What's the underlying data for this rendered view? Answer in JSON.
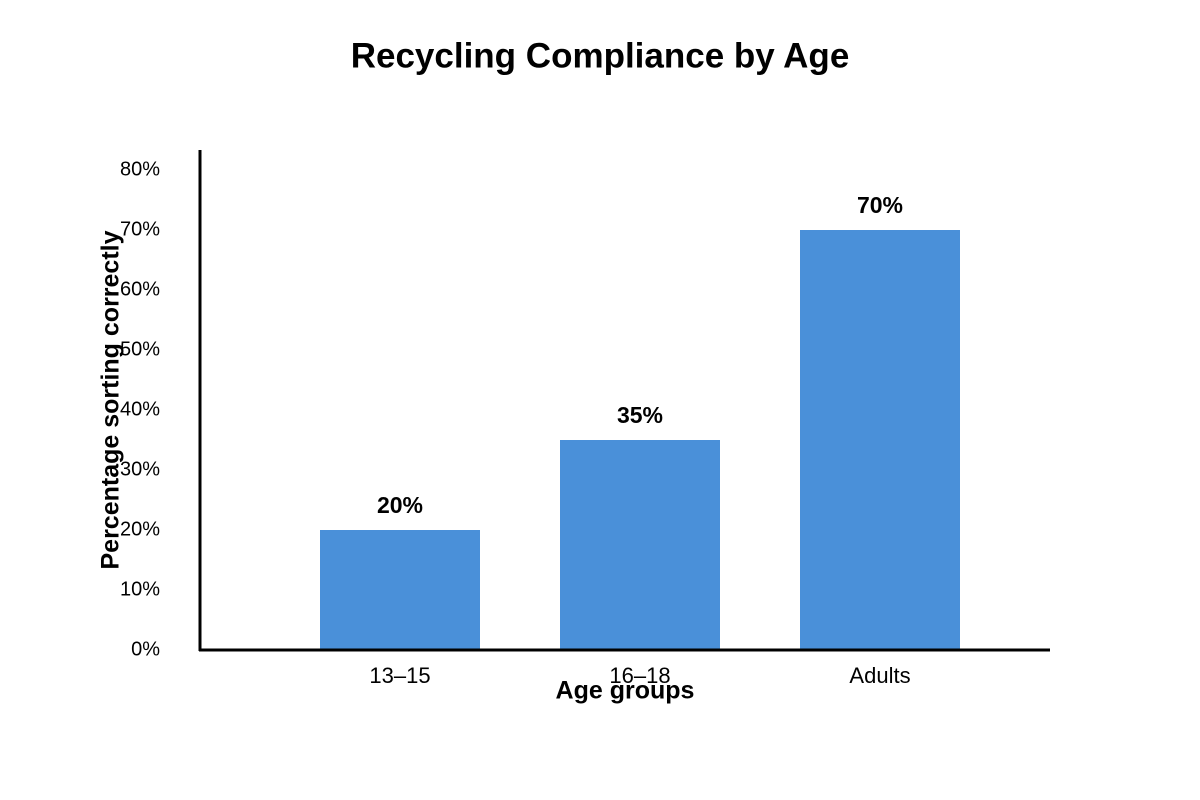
{
  "chart_data": {
    "type": "bar",
    "title": "Recycling Compliance by Age",
    "x_label": "Age groups",
    "y_label": "Percentage sorting correctly",
    "categories": [
      "13–15",
      "16–18",
      "Adults"
    ],
    "values": [
      20,
      35,
      70
    ],
    "value_labels": [
      "20%",
      "35%",
      "70%"
    ],
    "color": "#4a90d9",
    "ylim": [
      0,
      80
    ],
    "yticks": [
      {
        "value": 0,
        "label": "0%"
      },
      {
        "value": 10,
        "label": "10%"
      },
      {
        "value": 20,
        "label": "20%"
      },
      {
        "value": 30,
        "label": "30%"
      },
      {
        "value": 40,
        "label": "40%"
      },
      {
        "value": 50,
        "label": "50%"
      },
      {
        "value": 60,
        "label": "60%"
      },
      {
        "value": 70,
        "label": "70%"
      },
      {
        "value": 80,
        "label": "80%"
      }
    ],
    "grid": false
  }
}
